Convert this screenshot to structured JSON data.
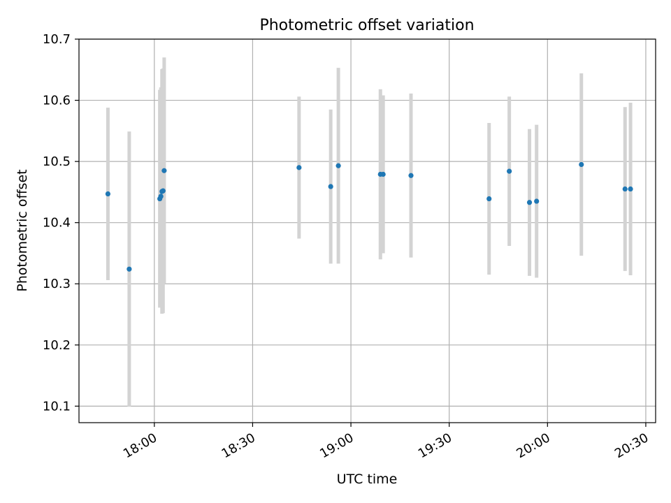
{
  "chart_data": {
    "type": "scatter",
    "title": "Photometric offset variation",
    "xlabel": "UTC time",
    "ylabel": "Photometric offset",
    "x_axis_kind": "time",
    "xlim": [
      "17:37",
      "20:33"
    ],
    "ylim": [
      10.073,
      10.7
    ],
    "x_ticks": [
      "18:00",
      "18:30",
      "19:00",
      "19:30",
      "20:00",
      "20:30"
    ],
    "y_ticks": [
      10.1,
      10.2,
      10.3,
      10.4,
      10.5,
      10.6,
      10.7
    ],
    "grid": true,
    "marker_color": "#1f77b4",
    "errorbar_color": "#d3d3d3",
    "points": [
      {
        "x": "17:45:50",
        "y": 10.447,
        "yerr": 0.141
      },
      {
        "x": "17:52:20",
        "y": 10.324,
        "yerr": 0.225
      },
      {
        "x": "18:01:40",
        "y": 10.439,
        "yerr": 0.178
      },
      {
        "x": "18:02:00",
        "y": 10.443,
        "yerr": 0.178
      },
      {
        "x": "18:02:20",
        "y": 10.451,
        "yerr": 0.2
      },
      {
        "x": "18:02:40",
        "y": 10.452,
        "yerr": 0.2
      },
      {
        "x": "18:03:00",
        "y": 10.485,
        "yerr": 0.185
      },
      {
        "x": "18:44:10",
        "y": 10.49,
        "yerr": 0.116
      },
      {
        "x": "18:53:50",
        "y": 10.459,
        "yerr": 0.126
      },
      {
        "x": "18:56:10",
        "y": 10.493,
        "yerr": 0.16
      },
      {
        "x": "19:09:00",
        "y": 10.479,
        "yerr": 0.139
      },
      {
        "x": "19:09:50",
        "y": 10.479,
        "yerr": 0.129
      },
      {
        "x": "19:18:20",
        "y": 10.477,
        "yerr": 0.134
      },
      {
        "x": "19:42:10",
        "y": 10.439,
        "yerr": 0.124
      },
      {
        "x": "19:48:20",
        "y": 10.484,
        "yerr": 0.122
      },
      {
        "x": "19:54:30",
        "y": 10.433,
        "yerr": 0.12
      },
      {
        "x": "19:56:40",
        "y": 10.435,
        "yerr": 0.125
      },
      {
        "x": "20:10:20",
        "y": 10.495,
        "yerr": 0.149
      },
      {
        "x": "20:23:40",
        "y": 10.455,
        "yerr": 0.134
      },
      {
        "x": "20:25:20",
        "y": 10.455,
        "yerr": 0.141
      }
    ]
  }
}
